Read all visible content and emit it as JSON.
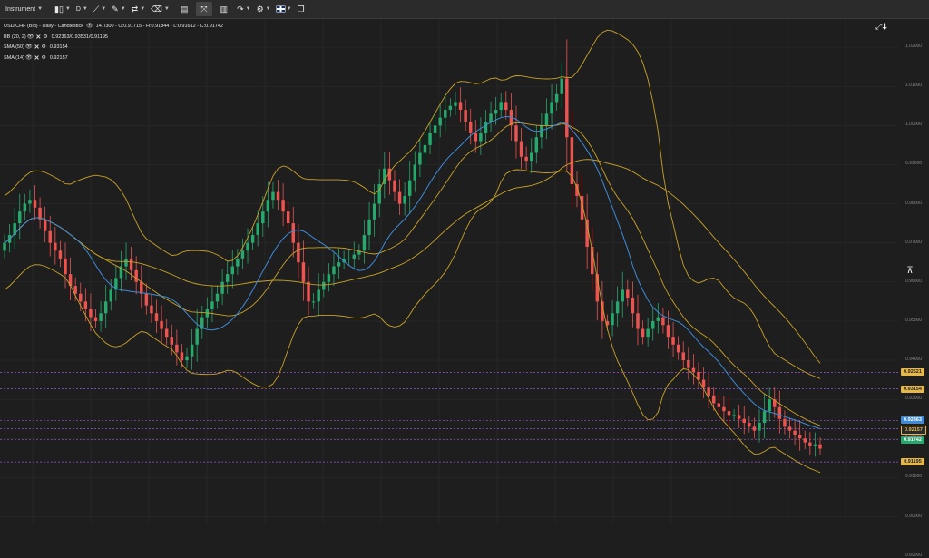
{
  "toolbar": {
    "instrument_label": "Instrument",
    "timeframe_label": "D",
    "items": [
      {
        "name": "candle-type-icon",
        "glyph": "⫼"
      },
      {
        "name": "timeframe",
        "glyph": "D"
      },
      {
        "name": "trendline-icon",
        "glyph": "⟋"
      },
      {
        "name": "pencil-icon",
        "glyph": "✎"
      },
      {
        "name": "tools-icon",
        "glyph": "⚒"
      },
      {
        "name": "trash-icon",
        "glyph": "🗑"
      },
      {
        "name": "layout-icon",
        "glyph": "▤"
      },
      {
        "name": "fullscreen-icon",
        "glyph": "⤢"
      },
      {
        "name": "indicators-icon",
        "glyph": "▥"
      },
      {
        "name": "share-icon",
        "glyph": "↷"
      },
      {
        "name": "settings-icon",
        "glyph": "⚙"
      },
      {
        "name": "language-flag-icon",
        "glyph": ""
      },
      {
        "name": "popout-icon",
        "glyph": "❐"
      }
    ]
  },
  "legend": {
    "title": "USD/CHF (Bid) - Daily - Candlestick",
    "ohlc": "147/300 - O:0.91715 - H:0.91844 - L:0.91612 - C:0.91742",
    "bb_label": "BB (20, 2)",
    "bb_value": "0.92363/0.93531/0.91195",
    "sma50_label": "SMA (50)",
    "sma50_value": "0.93154",
    "sma14_label": "SMA (14)",
    "sma14_value": "0.92157"
  },
  "colors": {
    "background": "#1e1e1e",
    "up": "#26a96c",
    "down": "#ef5350",
    "bollinger": "#c9a227",
    "sma50": "#c9a227",
    "sma14": "#3d8bd8",
    "level_line": "#9b59d0"
  },
  "price_tags": [
    {
      "value": "0.92621",
      "bg": "#e6b84a",
      "fg": "#222"
    },
    {
      "value": "0.93154",
      "bg": "#e6b84a",
      "fg": "#222"
    },
    {
      "value": "0.92363",
      "bg": "#3d8bd8",
      "fg": "#fff"
    },
    {
      "value": "0.92157",
      "bg": "#2a2a2a",
      "fg": "#e6b84a"
    },
    {
      "value": "0.91742",
      "bg": "#26a96c",
      "fg": "#fff"
    },
    {
      "value": "0.91195",
      "bg": "#e6b84a",
      "fg": "#222"
    }
  ],
  "chart_data": {
    "type": "candlestick",
    "ylim": [
      0.8985,
      1.0272
    ],
    "y_ticks": [
      "1.02000",
      "1.01000",
      "1.00000",
      "0.99000",
      "0.98000",
      "0.97000",
      "0.96000",
      "0.95000",
      "0.94000",
      "0.93000",
      "0.92000",
      "0.91000",
      "0.90000",
      "0.89000"
    ],
    "grid": true,
    "horizontal_levels": [
      0.9369,
      0.9327,
      0.9246,
      0.9225,
      0.9197,
      0.914
    ],
    "closes": [
      0.97,
      0.972,
      0.975,
      0.978,
      0.98,
      0.981,
      0.979,
      0.976,
      0.973,
      0.97,
      0.968,
      0.966,
      0.962,
      0.959,
      0.957,
      0.955,
      0.953,
      0.951,
      0.95,
      0.952,
      0.955,
      0.958,
      0.961,
      0.964,
      0.966,
      0.963,
      0.96,
      0.957,
      0.954,
      0.952,
      0.95,
      0.948,
      0.946,
      0.944,
      0.942,
      0.94,
      0.941,
      0.944,
      0.948,
      0.951,
      0.953,
      0.955,
      0.957,
      0.96,
      0.962,
      0.964,
      0.966,
      0.968,
      0.97,
      0.972,
      0.975,
      0.978,
      0.981,
      0.983,
      0.981,
      0.978,
      0.975,
      0.97,
      0.965,
      0.96,
      0.955,
      0.955,
      0.958,
      0.96,
      0.962,
      0.964,
      0.965,
      0.966,
      0.966,
      0.967,
      0.968,
      0.972,
      0.976,
      0.98,
      0.985,
      0.989,
      0.986,
      0.983,
      0.98,
      0.982,
      0.986,
      0.99,
      0.993,
      0.995,
      0.998,
      1.0,
      1.002,
      1.004,
      1.005,
      1.006,
      1.004,
      1.001,
      0.998,
      0.996,
      0.998,
      1.001,
      1.003,
      1.004,
      1.006,
      1.004,
      1.0,
      0.996,
      0.992,
      0.991,
      0.993,
      0.997,
      1.0,
      1.003,
      1.006,
      1.008,
      1.012,
      0.997,
      0.985,
      0.982,
      0.976,
      0.969,
      0.962,
      0.955,
      0.95,
      0.949,
      0.952,
      0.955,
      0.958,
      0.956,
      0.952,
      0.948,
      0.946,
      0.948,
      0.95,
      0.951,
      0.949,
      0.946,
      0.944,
      0.942,
      0.94,
      0.938,
      0.937,
      0.935,
      0.933,
      0.931,
      0.929,
      0.928,
      0.927,
      0.926,
      0.926,
      0.925,
      0.924,
      0.923,
      0.922,
      0.924,
      0.927,
      0.93,
      0.928,
      0.925,
      0.923,
      0.922,
      0.921,
      0.92,
      0.919,
      0.918,
      0.9185,
      0.9174
    ]
  }
}
